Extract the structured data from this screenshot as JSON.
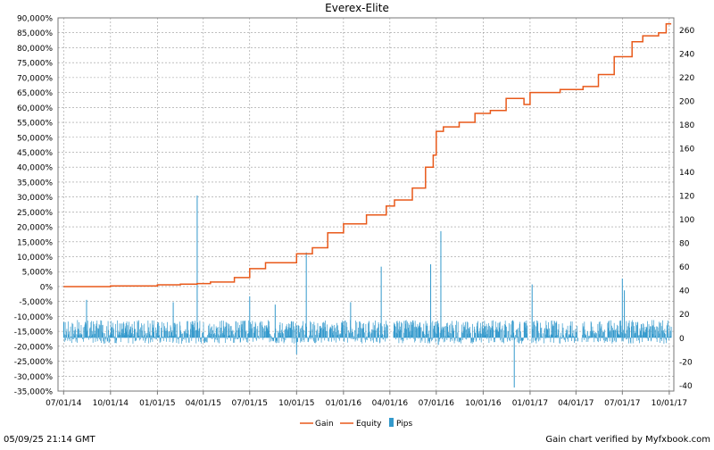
{
  "chart_data": {
    "type": "line",
    "title": "Everex-Elite",
    "xlabel": "",
    "ylabel": "",
    "y2label": "",
    "x_axis": {
      "type": "date",
      "range": [
        "2014-06-20",
        "2017-10-10"
      ],
      "ticks": [
        {
          "date": "2014-07-01",
          "label": "07/01/14"
        },
        {
          "date": "2014-10-01",
          "label": "10/01/14"
        },
        {
          "date": "2015-01-01",
          "label": "01/01/15"
        },
        {
          "date": "2015-04-01",
          "label": "04/01/15"
        },
        {
          "date": "2015-07-01",
          "label": "07/01/15"
        },
        {
          "date": "2015-10-01",
          "label": "10/01/15"
        },
        {
          "date": "2016-01-01",
          "label": "01/01/16"
        },
        {
          "date": "2016-04-01",
          "label": "04/01/16"
        },
        {
          "date": "2016-07-01",
          "label": "07/01/16"
        },
        {
          "date": "2016-10-01",
          "label": "10/01/16"
        },
        {
          "date": "2017-01-01",
          "label": "01/01/17"
        },
        {
          "date": "2017-04-01",
          "label": "04/01/17"
        },
        {
          "date": "2017-07-01",
          "label": "07/01/17"
        },
        {
          "date": "2017-10-01",
          "label": "10/01/17"
        }
      ]
    },
    "y_axis_left": {
      "range": [
        -35000,
        90000
      ],
      "step": 5000,
      "tick_labels": [
        "-35,000%",
        "-30,000%",
        "-25,000%",
        "-20,000%",
        "-15,000%",
        "-10,000%",
        "-5,000%",
        "0%",
        "5,000%",
        "10,000%",
        "15,000%",
        "20,000%",
        "25,000%",
        "30,000%",
        "35,000%",
        "40,000%",
        "45,000%",
        "50,000%",
        "55,000%",
        "60,000%",
        "65,000%",
        "70,000%",
        "75,000%",
        "80,000%",
        "85,000%",
        "90,000%"
      ]
    },
    "y_axis_right": {
      "range": [
        -45,
        270
      ],
      "ticks": [
        -40,
        -20,
        0,
        20,
        40,
        60,
        80,
        100,
        120,
        140,
        160,
        180,
        200,
        220,
        240,
        260
      ],
      "tick_labels": [
        "-40",
        "-20",
        "0",
        "20",
        "40",
        "60",
        "80",
        "100",
        "120",
        "140",
        "160",
        "180",
        "200",
        "220",
        "240",
        "260"
      ]
    },
    "grid": true,
    "legend": {
      "placement": "bottom-center",
      "entries": [
        "Gain",
        "Equity",
        "Pips"
      ]
    },
    "colors": {
      "gain": "#e8591a",
      "equity": "#e8591a",
      "pips": "#3399cc",
      "grid": "#999999"
    },
    "series": [
      {
        "name": "Gain",
        "axis": "left",
        "points": [
          [
            "2014-07-01",
            0
          ],
          [
            "2014-10-01",
            200
          ],
          [
            "2015-01-01",
            600
          ],
          [
            "2015-02-15",
            800
          ],
          [
            "2015-03-20",
            1000
          ],
          [
            "2015-04-15",
            1500
          ],
          [
            "2015-06-01",
            3000
          ],
          [
            "2015-07-01",
            6000
          ],
          [
            "2015-08-01",
            8000
          ],
          [
            "2015-10-01",
            11000
          ],
          [
            "2015-11-01",
            13000
          ],
          [
            "2015-12-01",
            18000
          ],
          [
            "2016-01-01",
            21000
          ],
          [
            "2016-02-15",
            24000
          ],
          [
            "2016-03-25",
            27000
          ],
          [
            "2016-04-10",
            29000
          ],
          [
            "2016-05-15",
            33000
          ],
          [
            "2016-06-10",
            40000
          ],
          [
            "2016-06-25",
            44000
          ],
          [
            "2016-07-01",
            52000
          ],
          [
            "2016-07-15",
            53500
          ],
          [
            "2016-08-15",
            55000
          ],
          [
            "2016-09-15",
            58000
          ],
          [
            "2016-10-15",
            59000
          ],
          [
            "2016-11-15",
            63000
          ],
          [
            "2016-12-20",
            61000
          ],
          [
            "2017-01-01",
            65000
          ],
          [
            "2017-03-01",
            66000
          ],
          [
            "2017-04-15",
            67000
          ],
          [
            "2017-05-15",
            71000
          ],
          [
            "2017-06-15",
            77000
          ],
          [
            "2017-07-20",
            82000
          ],
          [
            "2017-08-10",
            84000
          ],
          [
            "2017-09-10",
            85000
          ],
          [
            "2017-09-25",
            88000
          ],
          [
            "2017-10-05",
            88000
          ]
        ]
      },
      {
        "name": "Pips",
        "axis": "right",
        "type": "bar",
        "notable_points": [
          [
            "2015-03-20",
            120
          ],
          [
            "2016-07-10",
            90
          ],
          [
            "2016-06-20",
            62
          ],
          [
            "2015-10-20",
            72
          ],
          [
            "2016-03-15",
            60
          ],
          [
            "2017-07-01",
            50
          ],
          [
            "2016-12-01",
            -42
          ],
          [
            "2017-01-05",
            45
          ],
          [
            "2016-07-05",
            -6
          ],
          [
            "2016-01-15",
            30
          ],
          [
            "2015-07-01",
            35
          ],
          [
            "2015-08-20",
            28
          ],
          [
            "2015-10-01",
            -14
          ],
          [
            "2015-02-01",
            30
          ],
          [
            "2014-08-15",
            32
          ],
          [
            "2017-07-05",
            40
          ]
        ],
        "typical_range": [
          -5,
          15
        ]
      }
    ]
  },
  "footer": {
    "timestamp": "05/09/25 21:14 GMT",
    "verified": "Gain chart verified by Myfxbook.com"
  }
}
